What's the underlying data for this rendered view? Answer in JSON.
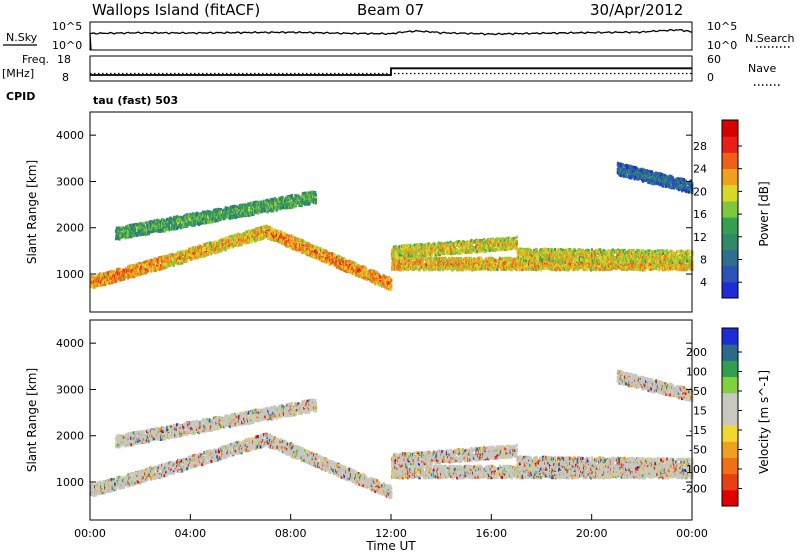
{
  "header": {
    "station": "Wallops Island (fitACF)",
    "beam": "Beam 07",
    "date": "30/Apr/2012"
  },
  "top_labels": {
    "nsky": "N.Sky",
    "nsky_ticks": [
      "10^5",
      "10^0"
    ],
    "nsearch": "N.Search",
    "nsearch_ticks": [
      "10^5",
      "10^0"
    ],
    "freq_label": "Freq.",
    "freq_unit": "[MHz]",
    "freq_ticks": [
      "18",
      "8"
    ],
    "nave": "Nave",
    "nave_ticks": [
      "60",
      "0"
    ],
    "cpid": "CPID",
    "cpid_value": "tau (fast) 503"
  },
  "colors": {
    "power_scale": [
      "#1e2cd8",
      "#2a52b8",
      "#2e6e8e",
      "#2f8a6a",
      "#36a052",
      "#7fc83e",
      "#d8d82a",
      "#f0a020",
      "#f06018",
      "#e82018",
      "#d80000"
    ],
    "velocity_scale": [
      "#e00000",
      "#e84010",
      "#f07018",
      "#f0a020",
      "#f0d830",
      "#c8c8c0",
      "#c8c8c0",
      "#80d040",
      "#30a050",
      "#2a6a8a",
      "#1e2cd8"
    ],
    "ground_scatter": "#c8c8c0"
  },
  "chart_data": [
    {
      "type": "line",
      "title": "",
      "series": [
        {
          "name": "N.Sky",
          "x": [
            0,
            2,
            4,
            6,
            8,
            10,
            12,
            13,
            14,
            16,
            18,
            20,
            22,
            23.5,
            24
          ],
          "y": [
            900,
            1200,
            1100,
            1300,
            1500,
            1000,
            800,
            2500,
            1200,
            700,
            1000,
            1300,
            1600,
            4000,
            1500
          ]
        }
      ],
      "ylabel": "N.Sky",
      "yscale": "log",
      "ylim": [
        1,
        100000
      ],
      "xlim": [
        0,
        24
      ]
    },
    {
      "type": "line",
      "title": "",
      "series": [
        {
          "name": "Freq.",
          "x": [
            0,
            12,
            12,
            24
          ],
          "y": [
            10.4,
            10.4,
            13.1,
            13.1
          ]
        },
        {
          "name": "Nave",
          "x": [
            0,
            12,
            24
          ],
          "y": [
            18,
            18,
            18
          ]
        }
      ],
      "ylabel": "Freq. [MHz]",
      "ylim": [
        8,
        18
      ],
      "y2lim": [
        0,
        60
      ],
      "xlim": [
        0,
        24
      ]
    },
    {
      "type": "heatmap",
      "title": "",
      "ylabel": "Slant Range [km]",
      "zlabel": "Power [dB]",
      "colorbar_ticks": [
        "28",
        "24",
        "20",
        "16",
        "12",
        "8",
        "4"
      ],
      "zlim": [
        0,
        32
      ],
      "ylim": [
        180,
        4500
      ],
      "y_ticks": [
        "1000",
        "2000",
        "3000",
        "4000"
      ],
      "xlim": [
        0,
        24
      ],
      "bands": [
        {
          "start": 0.0,
          "end": 3.0,
          "r0": 850,
          "r1": 1300,
          "p": 24
        },
        {
          "start": 3.0,
          "end": 7.0,
          "r0": 1300,
          "r1": 1950,
          "p": 22
        },
        {
          "start": 7.0,
          "end": 12.0,
          "r0": 1950,
          "r1": 800,
          "p": 24
        },
        {
          "start": 1.0,
          "end": 9.0,
          "r0": 1900,
          "r1": 2700,
          "p": 14
        },
        {
          "start": 12.0,
          "end": 17.0,
          "r0": 1500,
          "r1": 1700,
          "p": 20
        },
        {
          "start": 12.0,
          "end": 24.0,
          "r0": 1250,
          "r1": 1250,
          "p": 22
        },
        {
          "start": 17.0,
          "end": 24.0,
          "r0": 1450,
          "r1": 1400,
          "p": 20
        },
        {
          "start": 21.0,
          "end": 24.0,
          "r0": 3300,
          "r1": 2900,
          "p": 8
        }
      ]
    },
    {
      "type": "heatmap",
      "title": "",
      "ylabel": "Slant Range [km]",
      "zlabel": "Velocity [m s^-1]",
      "colorbar_ticks": [
        "200",
        "100",
        "50",
        "15",
        "-15",
        "-50",
        "-100",
        "-200"
      ],
      "zlim": [
        -250,
        250
      ],
      "ylim": [
        180,
        4500
      ],
      "y_ticks": [
        "1000",
        "2000",
        "3000",
        "4000"
      ],
      "x_ticks": [
        "00:00",
        "04:00",
        "08:00",
        "12:00",
        "16:00",
        "20:00",
        "00:00"
      ],
      "xlabel": "Time UT",
      "xlim": [
        0,
        24
      ]
    }
  ]
}
